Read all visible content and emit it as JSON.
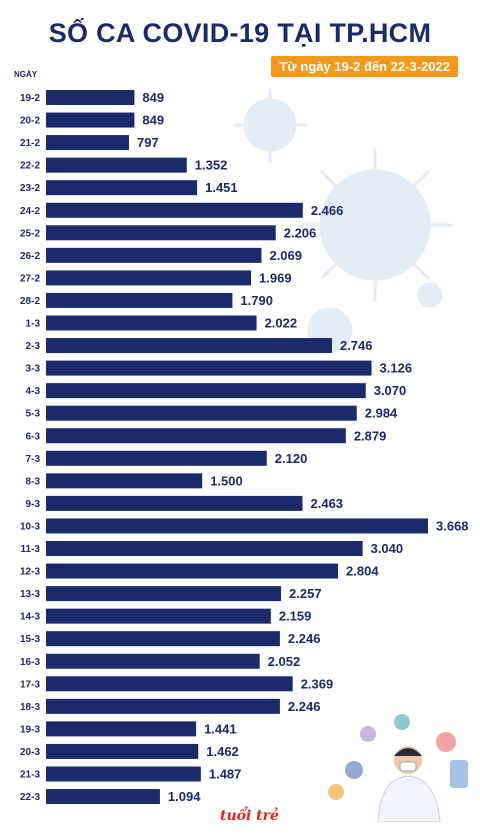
{
  "chart_data": {
    "type": "bar",
    "orientation": "horizontal",
    "title": "SỐ CA COVID-19 TẠI TP.HCM",
    "subtitle": "Từ ngày 19-2 đến 22-3-2022",
    "ylabel": "NGÀY",
    "categories": [
      "19-2",
      "20-2",
      "21-2",
      "22-2",
      "23-2",
      "24-2",
      "25-2",
      "26-2",
      "27-2",
      "28-2",
      "1-3",
      "2-3",
      "3-3",
      "4-3",
      "5-3",
      "6-3",
      "7-3",
      "8-3",
      "9-3",
      "10-3",
      "11-3",
      "12-3",
      "13-3",
      "14-3",
      "15-3",
      "16-3",
      "17-3",
      "18-3",
      "19-3",
      "20-3",
      "21-3",
      "22-3"
    ],
    "values": [
      849,
      849,
      797,
      1352,
      1451,
      2466,
      2206,
      2069,
      1969,
      1790,
      2022,
      2746,
      3126,
      3070,
      2984,
      2879,
      2120,
      1500,
      2463,
      3668,
      3040,
      2804,
      2257,
      2159,
      2246,
      2052,
      2369,
      2246,
      1441,
      1462,
      1487,
      1094
    ],
    "value_labels": [
      "849",
      "849",
      "797",
      "1.352",
      "1.451",
      "2.466",
      "2.206",
      "2.069",
      "1.969",
      "1.790",
      "2.022",
      "2.746",
      "3.126",
      "3.070",
      "2.984",
      "2.879",
      "2.120",
      "1.500",
      "2.463",
      "3.668",
      "3.040",
      "2.804",
      "2.257",
      "2.159",
      "2.246",
      "2.052",
      "2.369",
      "2.246",
      "1.441",
      "1.462",
      "1.487",
      "1.094"
    ],
    "xlim": [
      0,
      3668
    ],
    "grid": false,
    "legend": "none",
    "colors": {
      "bar": "#1b2a6b",
      "title": "#1b2a6b",
      "badge": "#f39a1e",
      "decor": "#dde6f2"
    }
  },
  "branding": {
    "logo_text": "tuổi trẻ"
  }
}
